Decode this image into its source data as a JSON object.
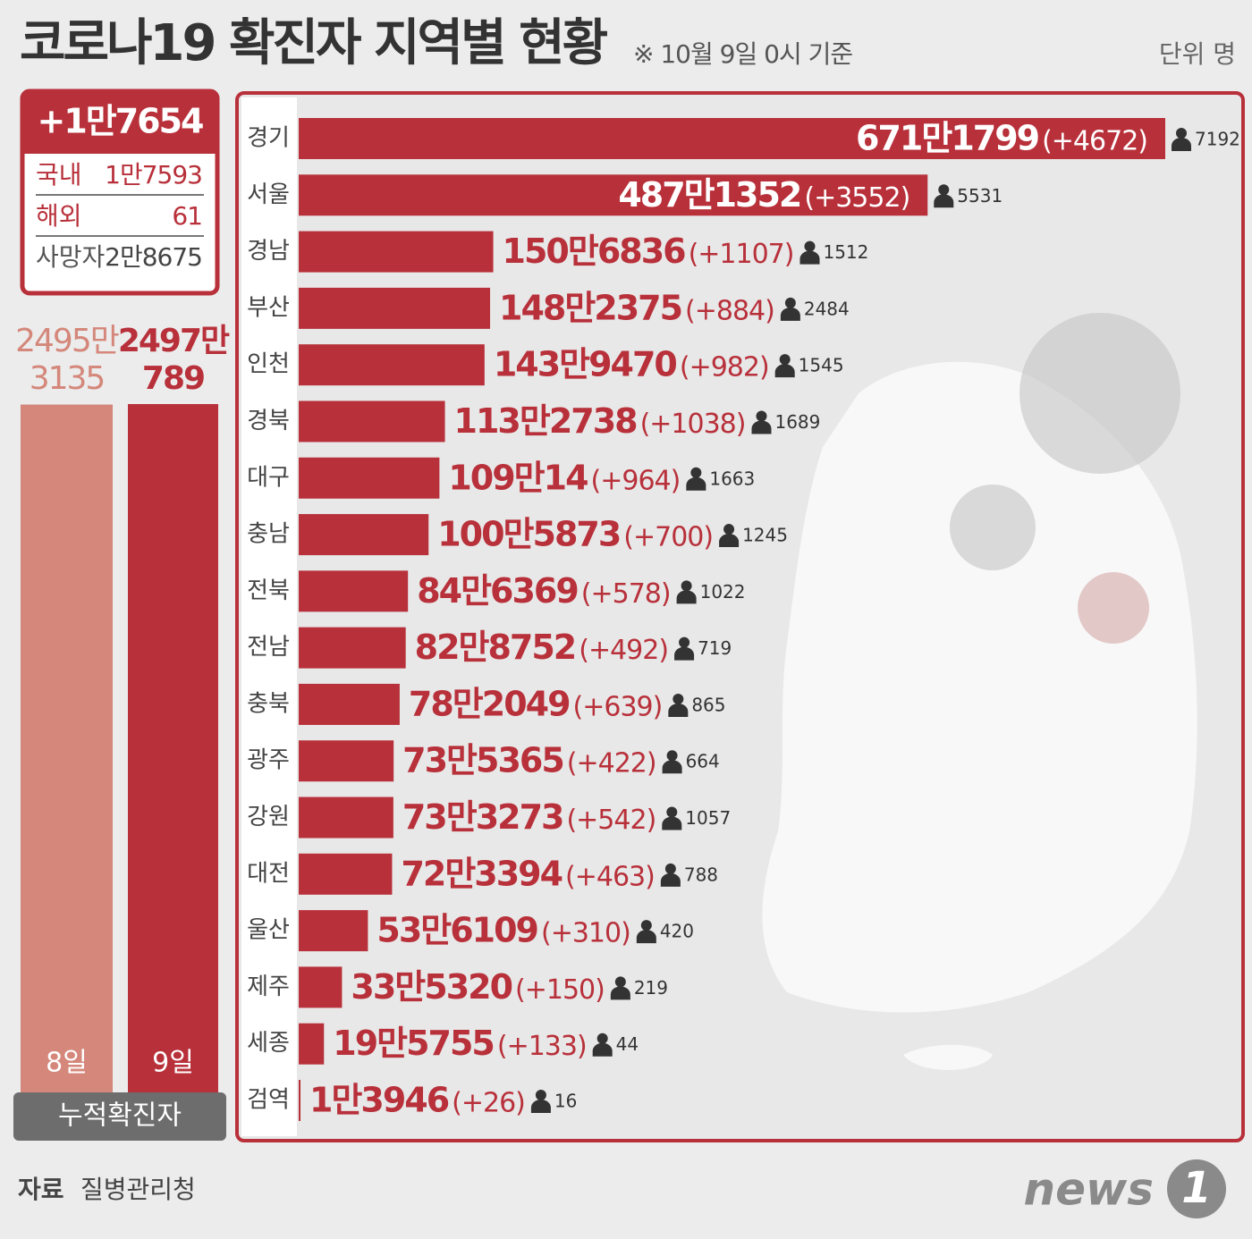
{
  "header": {
    "title": "코로나19 확진자 지역별 현황",
    "note": "※ 10월 9일 0시 기준",
    "unit": "단위 명"
  },
  "summary": {
    "total": "+1만7654",
    "rows": [
      {
        "name": "국내",
        "value": "1만7593"
      },
      {
        "name": "해외",
        "value": "61"
      },
      {
        "name": "사망자",
        "value": "2만8675"
      }
    ]
  },
  "chart_data": [
    {
      "type": "column",
      "xlabel": "누적확진자",
      "categories": [
        "8일",
        "9일"
      ],
      "values": [
        24953135,
        24970789
      ],
      "value_labels": [
        "2495만\n3135",
        "2497만\n789"
      ],
      "colors": [
        "#d4877a",
        "#b8303a"
      ]
    },
    {
      "type": "hbar",
      "categories": [
        "경기",
        "서울",
        "경남",
        "부산",
        "인천",
        "경북",
        "대구",
        "충남",
        "전북",
        "전남",
        "충북",
        "광주",
        "강원",
        "대전",
        "울산",
        "제주",
        "세종",
        "검역"
      ],
      "values": [
        6711799,
        4871352,
        1506836,
        1482375,
        1439470,
        1132738,
        1090014,
        1005873,
        846369,
        828752,
        782049,
        735365,
        733273,
        723394,
        536109,
        335320,
        195755,
        13946
      ],
      "value_labels": [
        "671만1799",
        "487만1352",
        "150만6836",
        "148만2375",
        "143만9470",
        "113만2738",
        "109만14",
        "100만5873",
        "84만6369",
        "82만8752",
        "78만2049",
        "73만5365",
        "73만3273",
        "72만3394",
        "53만6109",
        "33만5320",
        "19만5755",
        "1만3946"
      ],
      "increase": [
        {
          "value": 4672,
          "label": "(+4672)"
        },
        {
          "value": 3552,
          "label": "(+3552)"
        },
        {
          "value": 1107,
          "label": "(+1107)"
        },
        {
          "value": 884,
          "label": "(+884)"
        },
        {
          "value": 982,
          "label": "(+982)"
        },
        {
          "value": 1038,
          "label": "(+1038)"
        },
        {
          "value": 964,
          "label": "(+964)"
        },
        {
          "value": 700,
          "label": "(+700)"
        },
        {
          "value": 578,
          "label": "(+578)"
        },
        {
          "value": 492,
          "label": "(+492)"
        },
        {
          "value": 639,
          "label": "(+639)"
        },
        {
          "value": 422,
          "label": "(+422)"
        },
        {
          "value": 542,
          "label": "(+542)"
        },
        {
          "value": 463,
          "label": "(+463)"
        },
        {
          "value": 310,
          "label": "(+310)"
        },
        {
          "value": 150,
          "label": "(+150)"
        },
        {
          "value": 133,
          "label": "(+133)"
        },
        {
          "value": 26,
          "label": "(+26)"
        }
      ],
      "deaths": [
        7192,
        5531,
        1512,
        2484,
        1545,
        1689,
        1663,
        1245,
        1022,
        719,
        865,
        664,
        1057,
        788,
        420,
        219,
        44,
        16
      ],
      "color": "#b8303a"
    }
  ],
  "footer": {
    "source_label": "자료",
    "source": "질병관리청",
    "logo": "news",
    "logo_mark": "1"
  }
}
